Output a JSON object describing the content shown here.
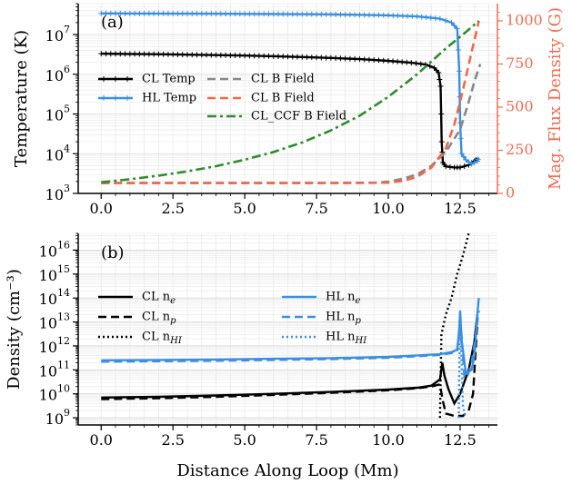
{
  "chart_data": [
    {
      "type": "line",
      "panel_label": "(a)",
      "xlabel": "",
      "ylabel": "Temperature (K)",
      "y2label": "Mag. Flux Density (G)",
      "xlim": [
        -0.8,
        13.8
      ],
      "ylim": [
        1000,
        60000000
      ],
      "ylim_right": [
        0,
        1100
      ],
      "yscale": "log",
      "grid": true,
      "legend_position": "center-left",
      "x_ticks": [
        "0.0",
        "2.5",
        "5.0",
        "7.5",
        "10.0",
        "12.5"
      ],
      "x_tick_values": [
        0,
        2.5,
        5,
        7.5,
        10,
        12.5
      ],
      "y_ticks": [
        {
          "v": 1000,
          "b": "10",
          "e": "3"
        },
        {
          "v": 10000,
          "b": "10",
          "e": "4"
        },
        {
          "v": 100000,
          "b": "10",
          "e": "5"
        },
        {
          "v": 1000000,
          "b": "10",
          "e": "6"
        },
        {
          "v": 10000000,
          "b": "10",
          "e": "7"
        }
      ],
      "y2_ticks": [
        "0",
        "250",
        "500",
        "750",
        "1000"
      ],
      "y2_tick_values": [
        0,
        250,
        500,
        750,
        1000
      ],
      "axis_colors": {
        "right": "#ee6e55"
      },
      "series": [
        {
          "name": "CL Temp",
          "axis": "left",
          "color": "#000000",
          "dash": "solid",
          "marker": "plus",
          "points": [
            [
              0,
              3300000
            ],
            [
              1,
              3250000
            ],
            [
              2,
              3200000
            ],
            [
              3,
              3120000
            ],
            [
              4,
              3040000
            ],
            [
              5,
              2950000
            ],
            [
              6,
              2850000
            ],
            [
              7,
              2720000
            ],
            [
              8,
              2580000
            ],
            [
              9,
              2400000
            ],
            [
              10,
              2180000
            ],
            [
              10.8,
              1950000
            ],
            [
              11.3,
              1750000
            ],
            [
              11.6,
              1450000
            ],
            [
              11.75,
              1100000
            ],
            [
              11.82,
              500000
            ],
            [
              11.86,
              20000
            ],
            [
              11.9,
              6000
            ],
            [
              12.0,
              4800
            ],
            [
              12.3,
              4500
            ],
            [
              12.5,
              4500
            ],
            [
              12.8,
              5200
            ],
            [
              13.0,
              6500
            ],
            [
              13.1,
              7500
            ]
          ]
        },
        {
          "name": "HL Temp",
          "axis": "left",
          "color": "#3b8fe0",
          "dash": "solid",
          "marker": "plus",
          "points": [
            [
              0,
              34000000
            ],
            [
              2,
              33800000
            ],
            [
              4,
              33500000
            ],
            [
              6,
              33000000
            ],
            [
              8,
              32200000
            ],
            [
              10,
              30500000
            ],
            [
              11,
              28500000
            ],
            [
              11.8,
              25000000
            ],
            [
              12.2,
              20000000
            ],
            [
              12.4,
              14000000
            ],
            [
              12.47,
              1200000
            ],
            [
              12.5,
              60000
            ],
            [
              12.55,
              10000
            ],
            [
              12.7,
              7000
            ],
            [
              12.9,
              5500
            ],
            [
              13.1,
              6500
            ],
            [
              13.15,
              8000
            ]
          ]
        },
        {
          "name": "CL B Field",
          "axis": "right",
          "color": "#888888",
          "dash": "dashed",
          "points": [
            [
              0,
              60
            ],
            [
              2,
              60
            ],
            [
              4,
              60
            ],
            [
              6,
              60
            ],
            [
              8,
              60
            ],
            [
              9.5,
              62
            ],
            [
              10,
              68
            ],
            [
              10.5,
              85
            ],
            [
              11,
              110
            ],
            [
              11.5,
              160
            ],
            [
              12,
              240
            ],
            [
              12.5,
              370
            ],
            [
              12.8,
              530
            ],
            [
              13,
              650
            ],
            [
              13.2,
              750
            ]
          ]
        },
        {
          "name": "CL B Field",
          "axis": "right",
          "color": "#f2684a",
          "dash": "dashed",
          "points": [
            [
              0,
              60
            ],
            [
              2,
              60
            ],
            [
              4,
              60
            ],
            [
              6,
              60
            ],
            [
              8,
              60
            ],
            [
              10,
              62
            ],
            [
              10.5,
              72
            ],
            [
              11,
              95
            ],
            [
              11.5,
              150
            ],
            [
              12,
              260
            ],
            [
              12.3,
              400
            ],
            [
              12.6,
              600
            ],
            [
              12.9,
              820
            ],
            [
              13.1,
              960
            ],
            [
              13.15,
              1000
            ]
          ]
        },
        {
          "name": "CL_CCF B Field",
          "axis": "right",
          "color": "#2e8b2e",
          "dash": "dashdot",
          "points": [
            [
              0,
              65
            ],
            [
              1,
              82
            ],
            [
              2,
              103
            ],
            [
              3,
              128
            ],
            [
              4,
              158
            ],
            [
              5,
              195
            ],
            [
              6,
              240
            ],
            [
              7,
              295
            ],
            [
              8,
              365
            ],
            [
              9,
              450
            ],
            [
              10,
              560
            ],
            [
              11,
              690
            ],
            [
              12,
              840
            ],
            [
              12.7,
              935
            ],
            [
              13.15,
              1000
            ]
          ]
        }
      ]
    },
    {
      "type": "line",
      "panel_label": "(b)",
      "xlabel": "Distance Along Loop (Mm)",
      "ylabel": "Density (cm⁻³)",
      "xlim": [
        -0.8,
        13.8
      ],
      "ylim": [
        500000000,
        50000000000000000
      ],
      "yscale": "log",
      "grid": true,
      "legend_position": "center",
      "x_ticks": [
        "0.0",
        "2.5",
        "5.0",
        "7.5",
        "10.0",
        "12.5"
      ],
      "x_tick_values": [
        0,
        2.5,
        5,
        7.5,
        10,
        12.5
      ],
      "y_ticks": [
        {
          "v": 1000000000.0,
          "b": "10",
          "e": "9"
        },
        {
          "v": 10000000000.0,
          "b": "10",
          "e": "10"
        },
        {
          "v": 100000000000.0,
          "b": "10",
          "e": "11"
        },
        {
          "v": 1000000000000.0,
          "b": "10",
          "e": "12"
        },
        {
          "v": 10000000000000.0,
          "b": "10",
          "e": "13"
        },
        {
          "v": 100000000000000.0,
          "b": "10",
          "e": "14"
        },
        {
          "v": 1000000000000000.0,
          "b": "10",
          "e": "15"
        },
        {
          "v": 1e+16,
          "b": "10",
          "e": "16"
        }
      ],
      "series": [
        {
          "name": "CL n",
          "sub": "e",
          "color": "#000000",
          "dash": "solid",
          "points": [
            [
              0,
              7000000000.0
            ],
            [
              2,
              7500000000.0
            ],
            [
              4,
              8500000000.0
            ],
            [
              6,
              10000000000.0
            ],
            [
              8,
              12000000000.0
            ],
            [
              10,
              15000000000.0
            ],
            [
              11,
              18000000000.0
            ],
            [
              11.5,
              22000000000.0
            ],
            [
              11.8,
              40000000000.0
            ],
            [
              11.88,
              200000000000.0
            ],
            [
              11.95,
              60000000000.0
            ],
            [
              12.1,
              15000000000.0
            ],
            [
              12.3,
              4000000000.0
            ],
            [
              12.5,
              10000000000.0
            ],
            [
              12.8,
              100000000000.0
            ],
            [
              13.0,
              1500000000000.0
            ],
            [
              13.1,
              20000000000000.0
            ]
          ]
        },
        {
          "name": "CL n",
          "sub": "p",
          "color": "#000000",
          "dash": "dashed",
          "points": [
            [
              0,
              6000000000.0
            ],
            [
              2,
              6500000000.0
            ],
            [
              4,
              7500000000.0
            ],
            [
              6,
              9000000000.0
            ],
            [
              8,
              11000000000.0
            ],
            [
              10,
              14000000000.0
            ],
            [
              11,
              17000000000.0
            ],
            [
              11.5,
              20000000000.0
            ],
            [
              11.8,
              25000000000.0
            ],
            [
              11.9,
              5000000000.0
            ],
            [
              12.0,
              1500000000.0
            ],
            [
              12.3,
              1200000000.0
            ],
            [
              12.6,
              1200000000.0
            ],
            [
              12.8,
              2000000000.0
            ],
            [
              12.95,
              10000000000.0
            ],
            [
              13.1,
              10000000000000.0
            ]
          ]
        },
        {
          "name": "CL n",
          "sub": "HI",
          "color": "#000000",
          "dash": "dotted",
          "points": [
            [
              11.8,
              1000000000.0
            ],
            [
              11.85,
              3000000000000.0
            ],
            [
              12.0,
              20000000000000.0
            ],
            [
              12.2,
              100000000000000.0
            ],
            [
              12.4,
              1000000000000000.0
            ],
            [
              12.6,
              6000000000000000.0
            ],
            [
              12.8,
              5e+16
            ]
          ]
        },
        {
          "name": "HL n",
          "sub": "e",
          "color": "#3b8fe0",
          "dash": "solid",
          "points": [
            [
              0,
              250000000000.0
            ],
            [
              2,
              260000000000.0
            ],
            [
              4,
              270000000000.0
            ],
            [
              6,
              290000000000.0
            ],
            [
              8,
              310000000000.0
            ],
            [
              10,
              350000000000.0
            ],
            [
              11,
              400000000000.0
            ],
            [
              11.8,
              450000000000.0
            ],
            [
              12.2,
              550000000000.0
            ],
            [
              12.4,
              700000000000.0
            ],
            [
              12.47,
              5000000000000.0
            ],
            [
              12.5,
              30000000000000.0
            ],
            [
              12.55,
              2000000000000.0
            ],
            [
              12.7,
              70000000000.0
            ],
            [
              12.9,
              100000000000.0
            ],
            [
              13.0,
              400000000000.0
            ],
            [
              13.1,
              20000000000000.0
            ],
            [
              13.15,
              100000000000000.0
            ]
          ]
        },
        {
          "name": "HL n",
          "sub": "p",
          "color": "#3b8fe0",
          "dash": "dashed",
          "points": [
            [
              0,
              220000000000.0
            ],
            [
              2,
              230000000000.0
            ],
            [
              4,
              240000000000.0
            ],
            [
              6,
              260000000000.0
            ],
            [
              8,
              280000000000.0
            ],
            [
              10,
              320000000000.0
            ],
            [
              11,
              370000000000.0
            ],
            [
              11.8,
              420000000000.0
            ],
            [
              12.2,
              500000000000.0
            ],
            [
              12.4,
              650000000000.0
            ],
            [
              12.47,
              4000000000000.0
            ],
            [
              12.5,
              10000000000000.0
            ],
            [
              12.55,
              3000000000000.0
            ],
            [
              12.65,
              50000000000.0
            ],
            [
              12.75,
              50000000000.0
            ],
            [
              12.9,
              200000000000.0
            ],
            [
              13.05,
              3000000000000.0
            ],
            [
              13.15,
              30000000000000.0
            ]
          ]
        },
        {
          "name": "HL n",
          "sub": "HI",
          "color": "#3b8fe0",
          "dash": "dotted",
          "points": [
            [
              12.45,
              1000000000.0
            ],
            [
              12.48,
              1000000000000.0
            ],
            [
              12.5,
              6000000000000.0
            ],
            [
              12.55,
              300000000000.0
            ],
            [
              12.6,
              3000000000.0
            ],
            [
              12.7,
              1000000000.0
            ]
          ]
        }
      ]
    }
  ]
}
